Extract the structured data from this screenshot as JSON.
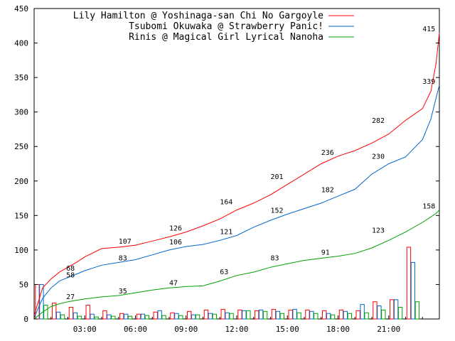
{
  "chart_data": {
    "type": "line",
    "title": "",
    "xlabel": "",
    "ylabel": "",
    "x_ticks": [
      "03:00",
      "06:00",
      "09:00",
      "12:00",
      "15:00",
      "18:00",
      "21:00"
    ],
    "x_tick_hours": [
      3,
      6,
      9,
      12,
      15,
      18,
      21
    ],
    "xlim": [
      0,
      24
    ],
    "ylim": [
      0,
      450
    ],
    "y_ticks": [
      "0",
      "50",
      "100",
      "150",
      "200",
      "250",
      "300",
      "350",
      "400",
      "450"
    ],
    "grid": false,
    "legend_position": "top-right",
    "series": [
      {
        "name": "Lily Hamilton @ Yoshinaga-san Chi No Gargoyle",
        "color": "#ff0000",
        "x": [
          0,
          0.5,
          1,
          1.5,
          2,
          2.5,
          3,
          4,
          5,
          6,
          7,
          8,
          9,
          10,
          11,
          12,
          13,
          14,
          15,
          16,
          17,
          18,
          19,
          20,
          21,
          22,
          23,
          23.5,
          23.8,
          24
        ],
        "y": [
          5,
          45,
          58,
          68,
          75,
          82,
          90,
          102,
          104,
          107,
          113,
          119,
          126,
          135,
          145,
          158,
          168,
          180,
          195,
          210,
          225,
          236,
          244,
          255,
          268,
          288,
          305,
          330,
          370,
          415
        ]
      },
      {
        "name": "Tsubomi Okuwaka @ Strawberry Panic!",
        "color": "#0066cc",
        "x": [
          0,
          0.5,
          1,
          1.5,
          2,
          2.5,
          3,
          4,
          5,
          6,
          7,
          8,
          9,
          10,
          11,
          12,
          13,
          14,
          15,
          16,
          17,
          18,
          19,
          20,
          21,
          22,
          23,
          23.5,
          23.8,
          24
        ],
        "y": [
          2,
          30,
          45,
          55,
          60,
          65,
          70,
          78,
          82,
          86,
          93,
          100,
          105,
          108,
          114,
          121,
          133,
          143,
          152,
          160,
          168,
          178,
          188,
          210,
          225,
          235,
          260,
          290,
          320,
          339
        ]
      },
      {
        "name": "Rinis @ Magical Girl Lyrical Nanoha",
        "color": "#00a000",
        "x": [
          0,
          0.5,
          1,
          1.5,
          2,
          2.5,
          3,
          4,
          5,
          6,
          7,
          8,
          9,
          10,
          11,
          12,
          13,
          14,
          15,
          16,
          17,
          18,
          19,
          20,
          21,
          22,
          23,
          23.5,
          23.8,
          24
        ],
        "y": [
          0,
          10,
          18,
          22,
          25,
          27,
          29,
          32,
          34,
          38,
          42,
          45,
          47,
          48,
          55,
          63,
          68,
          75,
          80,
          85,
          88,
          91,
          95,
          103,
          114,
          126,
          140,
          148,
          153,
          158
        ]
      }
    ],
    "bars": {
      "hours": [
        0,
        1,
        2,
        3,
        4,
        5,
        6,
        7,
        8,
        9,
        10,
        11,
        12,
        13,
        14,
        15,
        16,
        17,
        18,
        19,
        20,
        21,
        22,
        23
      ],
      "series": [
        {
          "name": "Lily Hamilton @ Yoshinaga-san Chi No Gargoyle",
          "color": "#ff0000",
          "values": [
            50,
            23,
            17,
            20,
            12,
            8,
            7,
            10,
            9,
            11,
            13,
            14,
            13,
            12,
            14,
            13,
            13,
            12,
            13,
            12,
            25,
            28,
            104,
            0
          ]
        },
        {
          "name": "Tsubomi Okuwaka @ Strawberry Panic!",
          "color": "#0066cc",
          "values": [
            50,
            10,
            9,
            7,
            6,
            7,
            7,
            12,
            8,
            6,
            8,
            9,
            12,
            13,
            11,
            14,
            11,
            8,
            11,
            21,
            19,
            28,
            82,
            0
          ]
        },
        {
          "name": "Rinis @ Magical Girl Lyrical Nanoha",
          "color": "#00a000",
          "values": [
            20,
            6,
            4,
            3,
            4,
            4,
            5,
            5,
            5,
            6,
            7,
            8,
            12,
            11,
            8,
            9,
            8,
            6,
            8,
            9,
            13,
            17,
            25,
            0
          ]
        }
      ]
    },
    "annotations": [
      {
        "series": 0,
        "x": 1.9,
        "y": 68,
        "label": "68"
      },
      {
        "series": 0,
        "x": 5.0,
        "y": 107,
        "label": "107"
      },
      {
        "series": 0,
        "x": 8.0,
        "y": 126,
        "label": "126"
      },
      {
        "series": 0,
        "x": 11.0,
        "y": 164,
        "label": "164"
      },
      {
        "series": 0,
        "x": 14.0,
        "y": 201,
        "label": "201"
      },
      {
        "series": 0,
        "x": 17.0,
        "y": 236,
        "label": "236"
      },
      {
        "series": 0,
        "x": 20.0,
        "y": 282,
        "label": "282"
      },
      {
        "series": 0,
        "x": 23.0,
        "y": 415,
        "label": "415"
      },
      {
        "series": 1,
        "x": 1.9,
        "y": 58,
        "label": "58"
      },
      {
        "series": 1,
        "x": 5.0,
        "y": 83,
        "label": "83"
      },
      {
        "series": 1,
        "x": 8.0,
        "y": 106,
        "label": "106"
      },
      {
        "series": 1,
        "x": 11.0,
        "y": 121,
        "label": "121"
      },
      {
        "series": 1,
        "x": 14.0,
        "y": 152,
        "label": "152"
      },
      {
        "series": 1,
        "x": 17.0,
        "y": 182,
        "label": "182"
      },
      {
        "series": 1,
        "x": 20.0,
        "y": 230,
        "label": "230"
      },
      {
        "series": 1,
        "x": 23.0,
        "y": 339,
        "label": "339"
      },
      {
        "series": 2,
        "x": 1.9,
        "y": 27,
        "label": "27"
      },
      {
        "series": 2,
        "x": 5.0,
        "y": 35,
        "label": "35"
      },
      {
        "series": 2,
        "x": 8.0,
        "y": 47,
        "label": "47"
      },
      {
        "series": 2,
        "x": 11.0,
        "y": 63,
        "label": "63"
      },
      {
        "series": 2,
        "x": 14.0,
        "y": 83,
        "label": "83"
      },
      {
        "series": 2,
        "x": 17.0,
        "y": 91,
        "label": "91"
      },
      {
        "series": 2,
        "x": 20.0,
        "y": 123,
        "label": "123"
      },
      {
        "series": 2,
        "x": 23.0,
        "y": 158,
        "label": "158"
      }
    ]
  }
}
